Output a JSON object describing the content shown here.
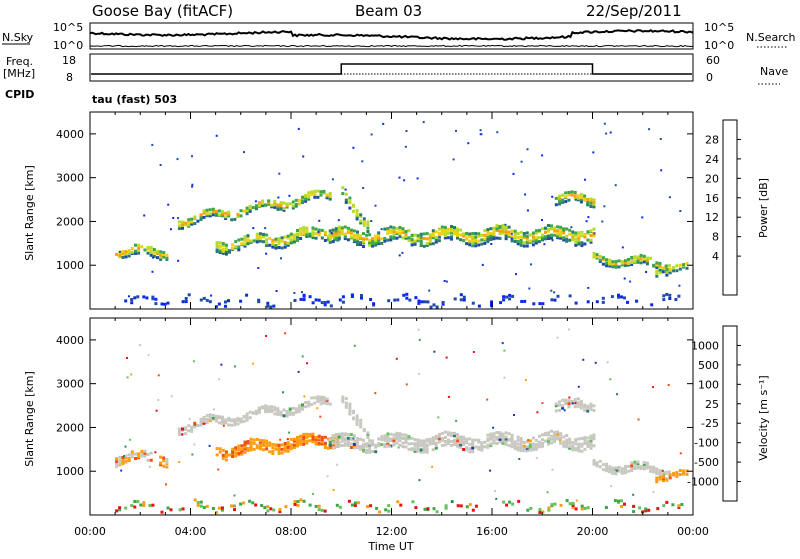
{
  "header": {
    "station": "Goose Bay (fitACF)",
    "beam": "Beam 03",
    "date": "22/Sep/2011"
  },
  "top_panels": {
    "nsky_label": "N.Sky",
    "nsearch_label": "N.Search",
    "nsky_ticks": [
      "10^5",
      "10^0"
    ],
    "freq_label_1": "Freq.",
    "freq_label_2": "[MHz]",
    "freq_ticks": [
      "18",
      "8"
    ],
    "nave_label": "Nave",
    "nave_ticks": [
      "60",
      "0"
    ],
    "cpid_label": "CPID",
    "cpid_value": "tau (fast) 503"
  },
  "chart_data": [
    {
      "type": "heatmap",
      "name": "power",
      "ylabel": "Slant Range [km]",
      "yticks": [
        "4000",
        "3000",
        "2000",
        "1000"
      ],
      "colorbar_label": "Power [dB]",
      "colorbar_ticks": [
        "28",
        "24",
        "20",
        "16",
        "12",
        "8",
        "4"
      ],
      "colors": [
        "#e81010",
        "#f0540a",
        "#ff9c10",
        "#f0d010",
        "#b4dc28",
        "#3ca648",
        "#2a7a70",
        "#1e4aa8",
        "#0a2ae8"
      ]
    },
    {
      "type": "heatmap",
      "name": "velocity",
      "ylabel": "Slant Range [km]",
      "yticks": [
        "4000",
        "3000",
        "2000",
        "1000"
      ],
      "colorbar_label": "Velocity [m s⁻¹]",
      "colorbar_ticks": [
        "1000",
        "500",
        "100",
        "25",
        "-25",
        "-100",
        "-500",
        "-1000"
      ],
      "colors": [
        "#1a3aa8",
        "#2a7a70",
        "#3ca648",
        "#66c25a",
        "#c8c8c0",
        "#c8c8c0",
        "#ff9c10",
        "#f05010",
        "#e81010"
      ]
    }
  ],
  "xaxis": {
    "ticks": [
      "00:00",
      "04:00",
      "08:00",
      "12:00",
      "16:00",
      "20:00",
      "00:00"
    ],
    "label": "Time UT"
  }
}
